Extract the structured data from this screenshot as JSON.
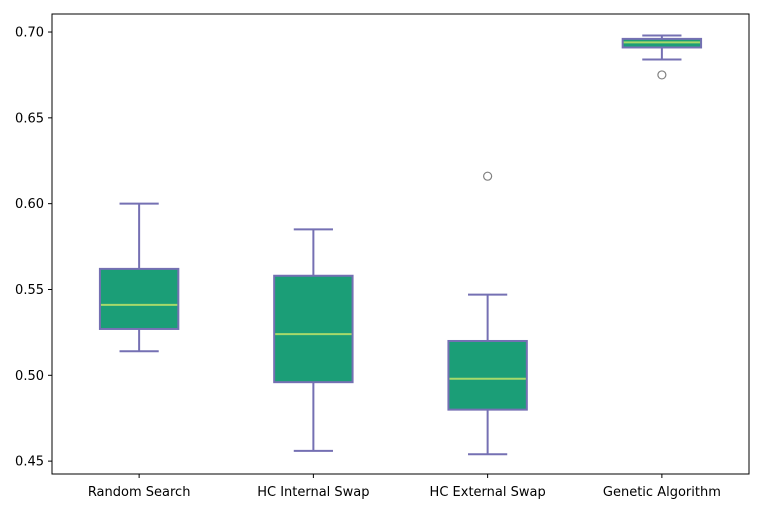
{
  "chart_data": {
    "type": "box",
    "categories": [
      "Random Search",
      "HC Internal Swap",
      "HC External Swap",
      "Genetic Algorithm"
    ],
    "boxes": [
      {
        "whisker_low": 0.514,
        "q1": 0.527,
        "median": 0.541,
        "q3": 0.562,
        "whisker_high": 0.6,
        "outliers": []
      },
      {
        "whisker_low": 0.456,
        "q1": 0.496,
        "median": 0.524,
        "q3": 0.558,
        "whisker_high": 0.585,
        "outliers": []
      },
      {
        "whisker_low": 0.454,
        "q1": 0.48,
        "median": 0.498,
        "q3": 0.52,
        "whisker_high": 0.547,
        "outliers": [
          0.616
        ]
      },
      {
        "whisker_low": 0.684,
        "q1": 0.691,
        "median": 0.694,
        "q3": 0.696,
        "whisker_high": 0.698,
        "outliers": [
          0.675
        ]
      }
    ],
    "yticks": [
      "0.45",
      "0.50",
      "0.55",
      "0.60",
      "0.65",
      "0.70"
    ],
    "ylim": [
      0.4425,
      0.7105
    ],
    "title": "",
    "xlabel": "",
    "ylabel": "",
    "grid": false,
    "colors": {
      "box_fill": "#1b9e77",
      "box_edge": "#7570b3",
      "median": "#a6d96a",
      "outlier": "#808080",
      "axis": "#000000"
    }
  }
}
